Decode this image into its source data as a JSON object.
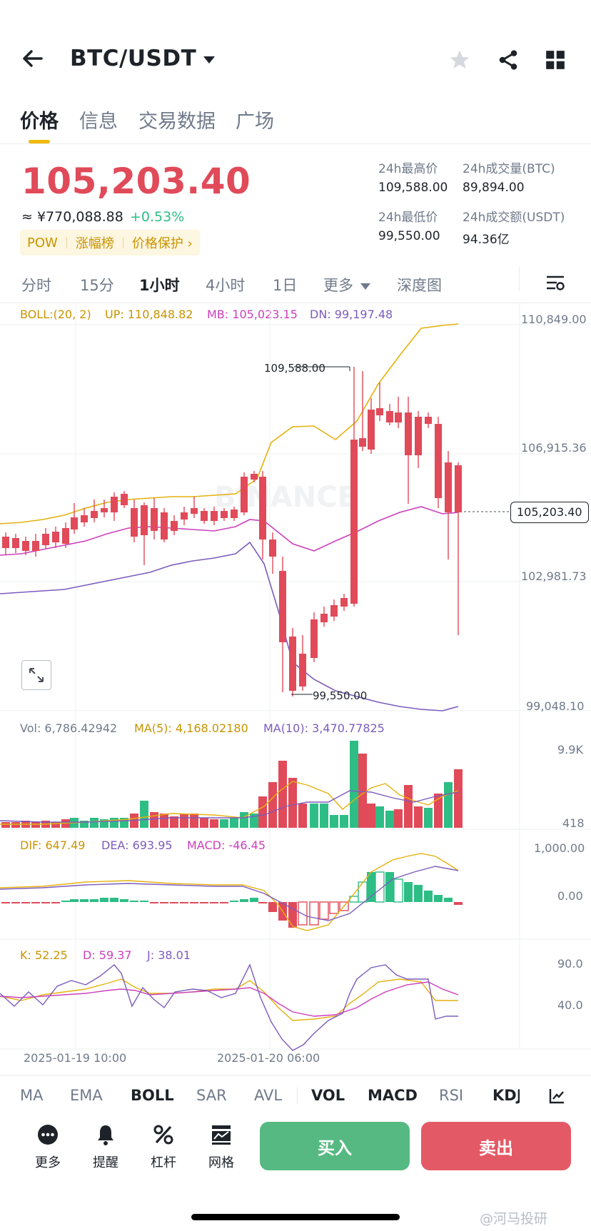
{
  "header": {
    "title": "BTC/USDT"
  },
  "tabs": [
    "价格",
    "信息",
    "交易数据",
    "广场"
  ],
  "ticker": {
    "last_price": "105,203.40",
    "cny_price": "≈ ¥770,088.88",
    "change": "+0.53%",
    "tags": [
      "POW",
      "涨幅榜",
      "价格保护 ›"
    ],
    "high_label": "24h最高价",
    "high_value": "109,588.00",
    "low_label": "24h最低价",
    "low_value": "99,550.00",
    "vol_btc_label": "24h成交量(BTC)",
    "vol_btc_value": "89,894.00",
    "vol_usdt_label": "24h成交额(USDT)",
    "vol_usdt_value": "94.36亿"
  },
  "intervals": [
    "分时",
    "15分",
    "1小时",
    "4小时",
    "1日",
    "更多",
    "深度图"
  ],
  "chart": {
    "boll_label": "BOLL:(20, 2)",
    "boll_up": "UP: 110,848.82",
    "boll_mb": "MB: 105,023.15",
    "boll_dn": "DN: 99,197.48",
    "y_ticks": [
      "110,849.00",
      "106,915.36",
      "102,981.73",
      "99,048.10"
    ],
    "current_price_tag": "105,203.40",
    "max_mark": "109,588.00",
    "min_mark": "99,550.00",
    "watermark": "BINANCE",
    "vol_label": "Vol: 6,786.42942",
    "vol_ma5": "MA(5): 4,168.02180",
    "vol_ma10": "MA(10): 3,470.77825",
    "vol_ticks": [
      "9.9K",
      "418"
    ],
    "dif": "DIF: 647.49",
    "dea": "DEA: 693.95",
    "macd": "MACD: -46.45",
    "macd_ticks": [
      "1,000.00",
      "0.00"
    ],
    "k": "K: 52.25",
    "d": "D: 59.37",
    "j": "J: 38.01",
    "kdj_ticks": [
      "90.0",
      "40.0"
    ],
    "x_ticks": [
      "2025-01-19 10:00",
      "2025-01-20 06:00"
    ]
  },
  "indicator_tabs": [
    "MA",
    "EMA",
    "BOLL",
    "SAR",
    "AVL",
    "VOL",
    "MACD",
    "RSI",
    "KDJ"
  ],
  "bottom_nav": [
    "更多",
    "提醒",
    "杠杆",
    "网格"
  ],
  "buy_label": "买入",
  "sell_label": "卖出",
  "footer_watermark": "@河马投研",
  "colors": {
    "up": "#2ebd85",
    "down": "#e04a59",
    "accent": "#f0b90b",
    "boll_up": "#e4b10e",
    "boll_mb": "#cc3fbd",
    "boll_dn": "#7c5cbc"
  }
}
